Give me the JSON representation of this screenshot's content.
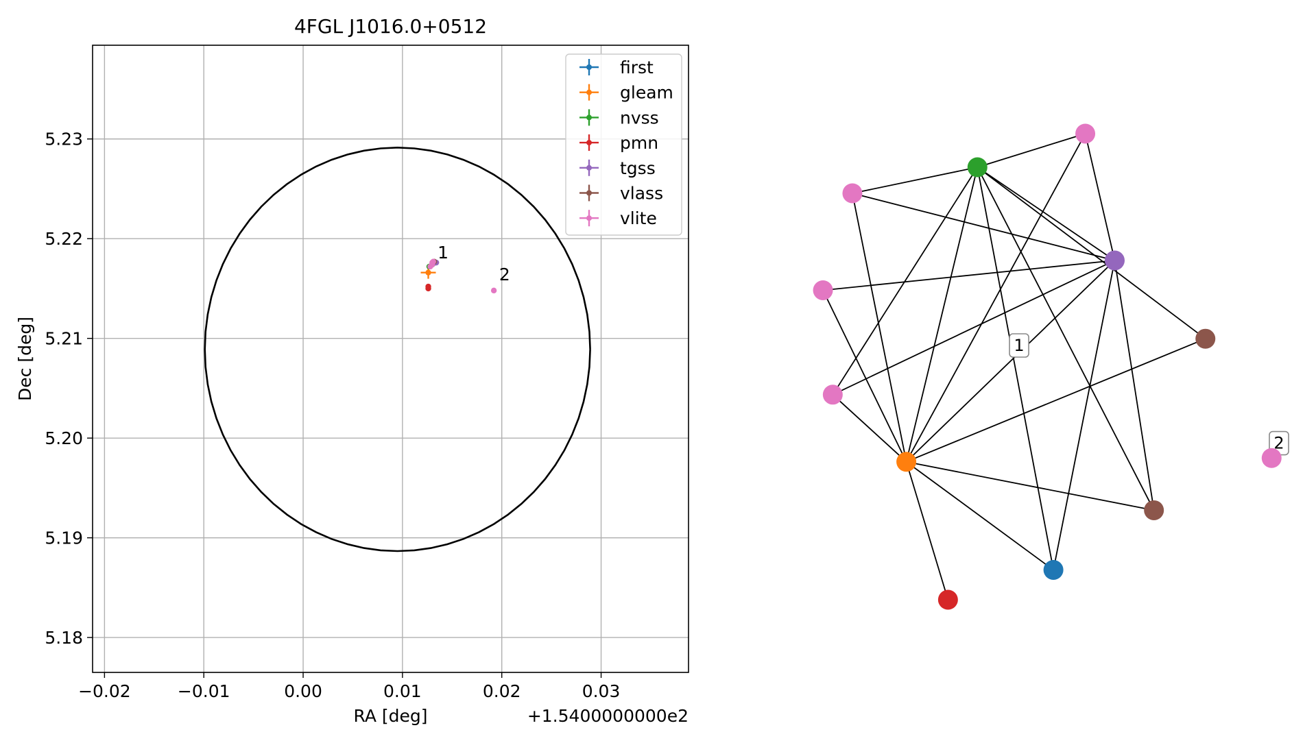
{
  "chart_data": [
    {
      "type": "scatter",
      "title": "4FGL J1016.0+0512",
      "xlabel": "RA [deg]",
      "ylabel": "Dec [deg]",
      "x_offset_label": "+1.5400000000e2",
      "xlim": [
        -0.0212,
        0.0388
      ],
      "ylim": [
        5.1765,
        5.2394
      ],
      "xticks": [
        -0.02,
        -0.01,
        0.0,
        0.01,
        0.02,
        0.03
      ],
      "xtick_labels": [
        "−0.02",
        "−0.01",
        "0.00",
        "0.01",
        "0.02",
        "0.03"
      ],
      "yticks": [
        5.18,
        5.19,
        5.2,
        5.21,
        5.22,
        5.23
      ],
      "ytick_labels": [
        "5.18",
        "5.19",
        "5.20",
        "5.21",
        "5.22",
        "5.23"
      ],
      "grid": true,
      "legend_position": "upper right",
      "region_circle": {
        "center": [
          0.0095,
          5.2089
        ],
        "radius": 0.0194,
        "y_scale": 1.043,
        "color": "#000000"
      },
      "series": [
        {
          "name": "first",
          "color": "#1f77b4",
          "points": [
            [
              0.0131,
              5.2175
            ]
          ]
        },
        {
          "name": "gleam",
          "color": "#ff7f0e",
          "points": [
            [
              0.0126,
              5.2166
            ]
          ]
        },
        {
          "name": "nvss",
          "color": "#2ca02c",
          "points": [
            [
              0.0127,
              5.2172
            ]
          ]
        },
        {
          "name": "pmn",
          "color": "#d62728",
          "points": [
            [
              0.0126,
              5.215
            ],
            [
              0.0126,
              5.2152
            ]
          ]
        },
        {
          "name": "tgss",
          "color": "#9467bd",
          "points": [
            [
              0.0134,
              5.2176
            ]
          ]
        },
        {
          "name": "vlass",
          "color": "#8c564b",
          "points": [
            [
              0.013,
              5.2174
            ],
            [
              0.0132,
              5.2177
            ]
          ]
        },
        {
          "name": "vlite",
          "color": "#e377c2",
          "points": [
            [
              0.013,
              5.2174
            ],
            [
              0.0131,
              5.2177
            ],
            [
              0.0128,
              5.2172
            ],
            [
              0.013,
              5.2176
            ],
            [
              0.0192,
              5.2148
            ]
          ]
        }
      ],
      "annotations": [
        {
          "text": "1",
          "x": 0.0134,
          "y": 5.2179
        },
        {
          "text": "2",
          "x": 0.0196,
          "y": 5.2157
        }
      ]
    },
    {
      "type": "network",
      "nodes": [
        {
          "id": 0,
          "color": "#2ca02c",
          "x": 0.385,
          "y": 0.175
        },
        {
          "id": 1,
          "color": "#e377c2",
          "x": 0.605,
          "y": 0.13
        },
        {
          "id": 2,
          "color": "#e377c2",
          "x": 0.13,
          "y": 0.21
        },
        {
          "id": 3,
          "color": "#9467bd",
          "x": 0.665,
          "y": 0.3
        },
        {
          "id": 4,
          "color": "#e377c2",
          "x": 0.07,
          "y": 0.34
        },
        {
          "id": 5,
          "color": "#8c564b",
          "x": 0.85,
          "y": 0.405
        },
        {
          "id": 6,
          "color": "#e377c2",
          "x": 0.09,
          "y": 0.48
        },
        {
          "id": 7,
          "color": "#ff7f0e",
          "x": 0.24,
          "y": 0.57
        },
        {
          "id": 8,
          "color": "#8c564b",
          "x": 0.745,
          "y": 0.635
        },
        {
          "id": 9,
          "color": "#1f77b4",
          "x": 0.54,
          "y": 0.715
        },
        {
          "id": 10,
          "color": "#d62728",
          "x": 0.325,
          "y": 0.755
        },
        {
          "id": 11,
          "color": "#e377c2",
          "x": 0.985,
          "y": 0.565
        }
      ],
      "edges": [
        [
          0,
          1
        ],
        [
          0,
          2
        ],
        [
          0,
          3
        ],
        [
          0,
          5
        ],
        [
          0,
          6
        ],
        [
          0,
          7
        ],
        [
          0,
          8
        ],
        [
          0,
          9
        ],
        [
          1,
          3
        ],
        [
          1,
          7
        ],
        [
          2,
          3
        ],
        [
          2,
          7
        ],
        [
          4,
          3
        ],
        [
          4,
          7
        ],
        [
          6,
          3
        ],
        [
          6,
          7
        ],
        [
          3,
          7
        ],
        [
          3,
          9
        ],
        [
          3,
          8
        ],
        [
          7,
          5
        ],
        [
          7,
          8
        ],
        [
          7,
          9
        ],
        [
          7,
          10
        ]
      ],
      "labels": [
        {
          "text": "1",
          "x": 0.47,
          "y": 0.414
        },
        {
          "text": "2",
          "x": 1.0,
          "y": 0.545
        }
      ]
    }
  ]
}
